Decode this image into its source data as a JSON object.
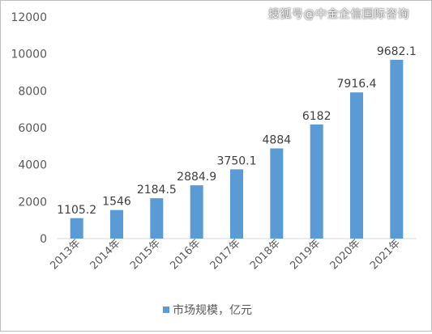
{
  "watermark": "搜狐号@中金企信国际咨询",
  "chart_data": {
    "type": "bar",
    "title": "",
    "xlabel": "",
    "ylabel": "",
    "categories": [
      "2013年",
      "2014年",
      "2015年",
      "2016年",
      "2017年",
      "2018年",
      "2019年",
      "2020年",
      "2021年"
    ],
    "series": [
      {
        "name": "市场规模，亿元",
        "values": [
          1105.2,
          1546,
          2184.5,
          2884.9,
          3750.1,
          4884,
          6182,
          7916.4,
          9682.1
        ],
        "labels": [
          "1105.2",
          "1546",
          "2184.5",
          "2884.9",
          "3750.1",
          "4884",
          "6182",
          "7916.4",
          "9682.1"
        ],
        "color": "#5b9bd5"
      }
    ],
    "ylim": [
      0,
      12000
    ],
    "yticks": [
      0,
      2000,
      4000,
      6000,
      8000,
      10000,
      12000
    ],
    "grid": false,
    "legend": "bottom-center"
  }
}
